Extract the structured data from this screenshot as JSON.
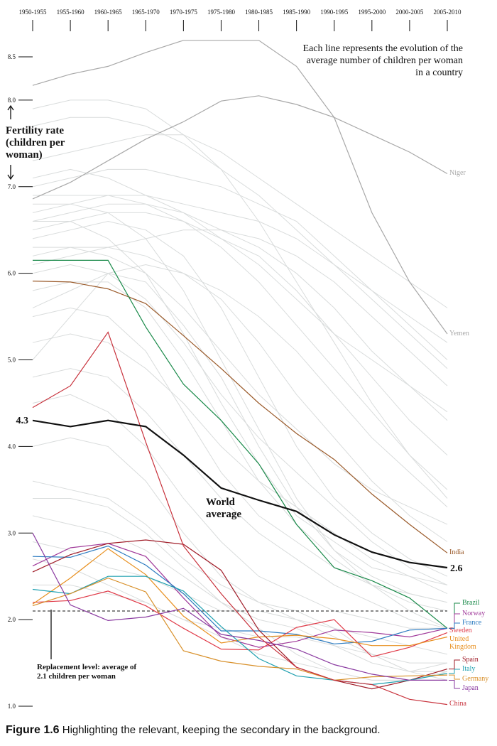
{
  "chart_data": {
    "type": "line",
    "y_label": "Fertility rate (children per woman)",
    "annotation": "Each line represents the evolution of the average number of children per woman in a country",
    "caption": {
      "label": "Figure 1.6",
      "text": "Highlighting the relevant, keeping the secondary in the background."
    },
    "categories": [
      "1950-1955",
      "1955-1960",
      "1960-1965",
      "1965-1970",
      "1970-1975",
      "1975-1980",
      "1980-1985",
      "1985-1990",
      "1990-1995",
      "1995-2000",
      "2000-2005",
      "2005-2010"
    ],
    "ylim": [
      1,
      8.5
    ],
    "yticks": [
      {
        "value": 1,
        "label": "1.0"
      },
      {
        "value": 2,
        "label": "2.0"
      },
      {
        "value": 3,
        "label": "3.0"
      },
      {
        "value": 4,
        "label": "4.0"
      },
      {
        "value": 5,
        "label": "5.0"
      },
      {
        "value": 6,
        "label": "6.0"
      },
      {
        "value": 7,
        "label": "7.0"
      },
      {
        "value": 8,
        "label": "8.0"
      },
      8.5
    ],
    "reference_line": {
      "value": 2.1,
      "label": "Replacement level: average of 2.1 children per woman"
    },
    "background_color": "#d9dcdc",
    "background_series": [
      [
        6.9,
        6.9,
        6.9,
        6.8,
        6.6,
        6.3,
        5.9,
        5.4,
        4.9,
        4.4,
        3.9,
        3.5
      ],
      [
        6.6,
        6.7,
        6.8,
        6.8,
        6.7,
        6.5,
        6.3,
        6.0,
        5.6,
        5.1,
        4.7,
        4.3
      ],
      [
        7.0,
        7.1,
        7.2,
        7.2,
        7.1,
        7.0,
        6.8,
        6.6,
        6.2,
        5.8,
        5.4,
        5.0
      ],
      [
        6.4,
        6.5,
        6.6,
        6.5,
        6.2,
        5.6,
        4.8,
        4.0,
        3.4,
        3.0,
        2.7,
        2.5
      ],
      [
        5.8,
        5.9,
        5.9,
        5.6,
        5.0,
        4.3,
        3.6,
        3.1,
        2.7,
        2.4,
        2.2,
        2.1
      ],
      [
        6.2,
        6.3,
        6.3,
        6.2,
        6.0,
        5.7,
        5.2,
        4.6,
        4.1,
        3.6,
        3.2,
        2.9
      ],
      [
        7.3,
        7.4,
        7.5,
        7.6,
        7.6,
        7.4,
        7.1,
        6.8,
        6.5,
        6.2,
        5.9,
        5.6
      ],
      [
        6.8,
        6.8,
        6.7,
        6.4,
        5.8,
        5.0,
        4.2,
        3.4,
        2.8,
        2.4,
        2.1,
        1.9
      ],
      [
        5.5,
        5.6,
        5.5,
        5.1,
        4.4,
        3.7,
        3.2,
        2.9,
        2.6,
        2.4,
        2.3,
        2.2
      ],
      [
        4.8,
        4.9,
        4.8,
        4.4,
        3.9,
        3.4,
        3.0,
        2.7,
        2.4,
        2.2,
        2.0,
        1.9
      ],
      [
        6.5,
        6.6,
        6.7,
        6.7,
        6.6,
        6.4,
        6.2,
        5.8,
        5.3,
        4.8,
        4.3,
        3.9
      ],
      [
        3.2,
        3.1,
        3.0,
        2.8,
        2.5,
        2.2,
        2.0,
        1.9,
        1.7,
        1.5,
        1.4,
        1.4
      ],
      [
        2.9,
        2.8,
        2.6,
        2.5,
        2.3,
        2.1,
        2.1,
        2.0,
        1.8,
        1.6,
        1.4,
        1.5
      ],
      [
        3.6,
        3.5,
        3.4,
        3.1,
        2.7,
        2.4,
        2.2,
        2.1,
        1.9,
        1.6,
        1.4,
        1.3
      ],
      [
        5.2,
        5.3,
        5.2,
        4.9,
        4.5,
        4.0,
        3.6,
        3.3,
        3.0,
        2.7,
        2.5,
        2.3
      ],
      [
        7.7,
        7.8,
        7.8,
        7.7,
        7.5,
        7.2,
        6.9,
        6.5,
        6.1,
        5.7,
        5.3,
        4.9
      ],
      [
        6.0,
        6.1,
        6.0,
        5.7,
        5.2,
        4.6,
        4.1,
        3.7,
        3.3,
        2.9,
        2.6,
        2.4
      ],
      [
        2.4,
        2.4,
        2.3,
        2.2,
        2.0,
        1.9,
        1.8,
        1.8,
        1.7,
        1.6,
        1.5,
        1.5
      ],
      [
        7.9,
        8.0,
        8.0,
        7.9,
        7.6,
        7.2,
        6.6,
        5.9,
        5.2,
        4.5,
        3.9,
        3.4
      ],
      [
        6.3,
        6.3,
        6.2,
        6.0,
        5.6,
        5.1,
        4.6,
        4.2,
        3.8,
        3.5,
        3.3,
        3.1
      ],
      [
        4.0,
        4.1,
        4.0,
        3.6,
        3.0,
        2.5,
        2.2,
        2.0,
        1.9,
        1.8,
        1.7,
        1.6
      ],
      [
        7.1,
        7.2,
        7.1,
        6.9,
        6.7,
        6.4,
        6.1,
        5.7,
        5.3,
        5.0,
        4.7,
        4.4
      ],
      [
        5.0,
        5.5,
        6.0,
        5.9,
        5.4,
        4.8,
        4.0,
        3.3,
        2.8,
        2.5,
        2.3,
        2.2
      ],
      [
        6.7,
        6.8,
        6.9,
        6.9,
        6.8,
        6.7,
        6.6,
        6.4,
        6.1,
        5.8,
        5.5,
        5.2
      ],
      [
        3.4,
        3.4,
        3.3,
        3.0,
        2.6,
        2.2,
        1.9,
        1.6,
        1.4,
        1.3,
        1.3,
        1.4
      ],
      [
        5.6,
        5.8,
        6.0,
        6.1,
        6.0,
        5.8,
        5.5,
        5.1,
        4.6,
        4.1,
        3.7,
        3.3
      ],
      [
        6.1,
        6.2,
        6.3,
        6.4,
        6.5,
        6.5,
        6.4,
        6.2,
        5.9,
        5.5,
        5.1,
        4.7
      ],
      [
        4.5,
        4.6,
        4.4,
        4.0,
        3.4,
        2.9,
        2.5,
        2.3,
        2.1,
        2.0,
        1.9,
        1.9
      ],
      [
        2.7,
        2.6,
        2.4,
        2.2,
        2.0,
        1.8,
        1.6,
        1.5,
        1.4,
        1.3,
        1.3,
        1.3
      ],
      [
        6.6,
        6.6,
        6.4,
        6.0,
        5.3,
        4.5,
        3.8,
        3.2,
        2.9,
        2.6,
        2.5,
        2.4
      ]
    ],
    "series": [
      {
        "name": "Niger",
        "color": "#a8a8a8",
        "values": [
          6.86,
          7.05,
          7.3,
          7.55,
          7.75,
          7.99,
          8.05,
          7.95,
          7.8,
          7.6,
          7.4,
          7.15
        ]
      },
      {
        "name": "Yemen",
        "color": "#a8a8a8",
        "values": [
          8.17,
          8.3,
          8.39,
          8.55,
          8.69,
          8.69,
          8.69,
          8.39,
          7.8,
          6.7,
          5.9,
          5.3
        ]
      },
      {
        "name": "India",
        "color": "#9a5a2a",
        "values": [
          5.91,
          5.9,
          5.82,
          5.65,
          5.28,
          4.9,
          4.5,
          4.15,
          3.85,
          3.45,
          3.1,
          2.77
        ]
      },
      {
        "name": "Brazil",
        "color": "#1a8a4a",
        "values": [
          6.15,
          6.15,
          6.15,
          5.38,
          4.72,
          4.3,
          3.8,
          3.1,
          2.6,
          2.45,
          2.25,
          1.9
        ]
      },
      {
        "name": "Norway",
        "color": "#a03a9a",
        "values": [
          2.62,
          2.83,
          2.88,
          2.73,
          2.25,
          1.8,
          1.68,
          1.75,
          1.88,
          1.85,
          1.8,
          1.9
        ]
      },
      {
        "name": "France",
        "color": "#2a7ac0",
        "values": [
          2.73,
          2.72,
          2.85,
          2.63,
          2.3,
          1.87,
          1.87,
          1.83,
          1.72,
          1.75,
          1.88,
          1.9
        ]
      },
      {
        "name": "Sweden",
        "color": "#e03a48",
        "values": [
          2.2,
          2.22,
          2.33,
          2.16,
          1.9,
          1.66,
          1.65,
          1.91,
          2.0,
          1.57,
          1.68,
          1.85
        ]
      },
      {
        "name": "United Kingdom",
        "color": "#e89020",
        "values": [
          2.18,
          2.48,
          2.82,
          2.52,
          2.04,
          1.73,
          1.8,
          1.82,
          1.78,
          1.7,
          1.7,
          1.8
        ]
      },
      {
        "name": "Spain",
        "color": "#a01c28",
        "values": [
          2.55,
          2.75,
          2.88,
          2.92,
          2.87,
          2.57,
          1.88,
          1.45,
          1.3,
          1.2,
          1.3,
          1.43
        ]
      },
      {
        "name": "Italy",
        "color": "#20a0b0",
        "values": [
          2.35,
          2.3,
          2.5,
          2.5,
          2.33,
          1.92,
          1.55,
          1.35,
          1.3,
          1.25,
          1.3,
          1.38
        ]
      },
      {
        "name": "Germany",
        "color": "#d8902a",
        "values": [
          2.16,
          2.3,
          2.48,
          2.32,
          1.64,
          1.52,
          1.46,
          1.43,
          1.3,
          1.34,
          1.35,
          1.36
        ]
      },
      {
        "name": "Japan",
        "color": "#8a3aa0",
        "values": [
          3.0,
          2.17,
          1.99,
          2.03,
          2.13,
          1.83,
          1.76,
          1.66,
          1.48,
          1.37,
          1.3,
          1.3
        ]
      },
      {
        "name": "China",
        "color": "#c8323c",
        "values": [
          4.45,
          4.7,
          5.32,
          4.05,
          2.85,
          2.3,
          1.8,
          1.45,
          1.3,
          1.25,
          1.08,
          1.02
        ]
      },
      {
        "name": "World average",
        "color": "#111111",
        "values": [
          4.3,
          4.23,
          4.3,
          4.23,
          3.9,
          3.52,
          3.38,
          3.25,
          2.98,
          2.78,
          2.66,
          2.6
        ]
      }
    ]
  }
}
